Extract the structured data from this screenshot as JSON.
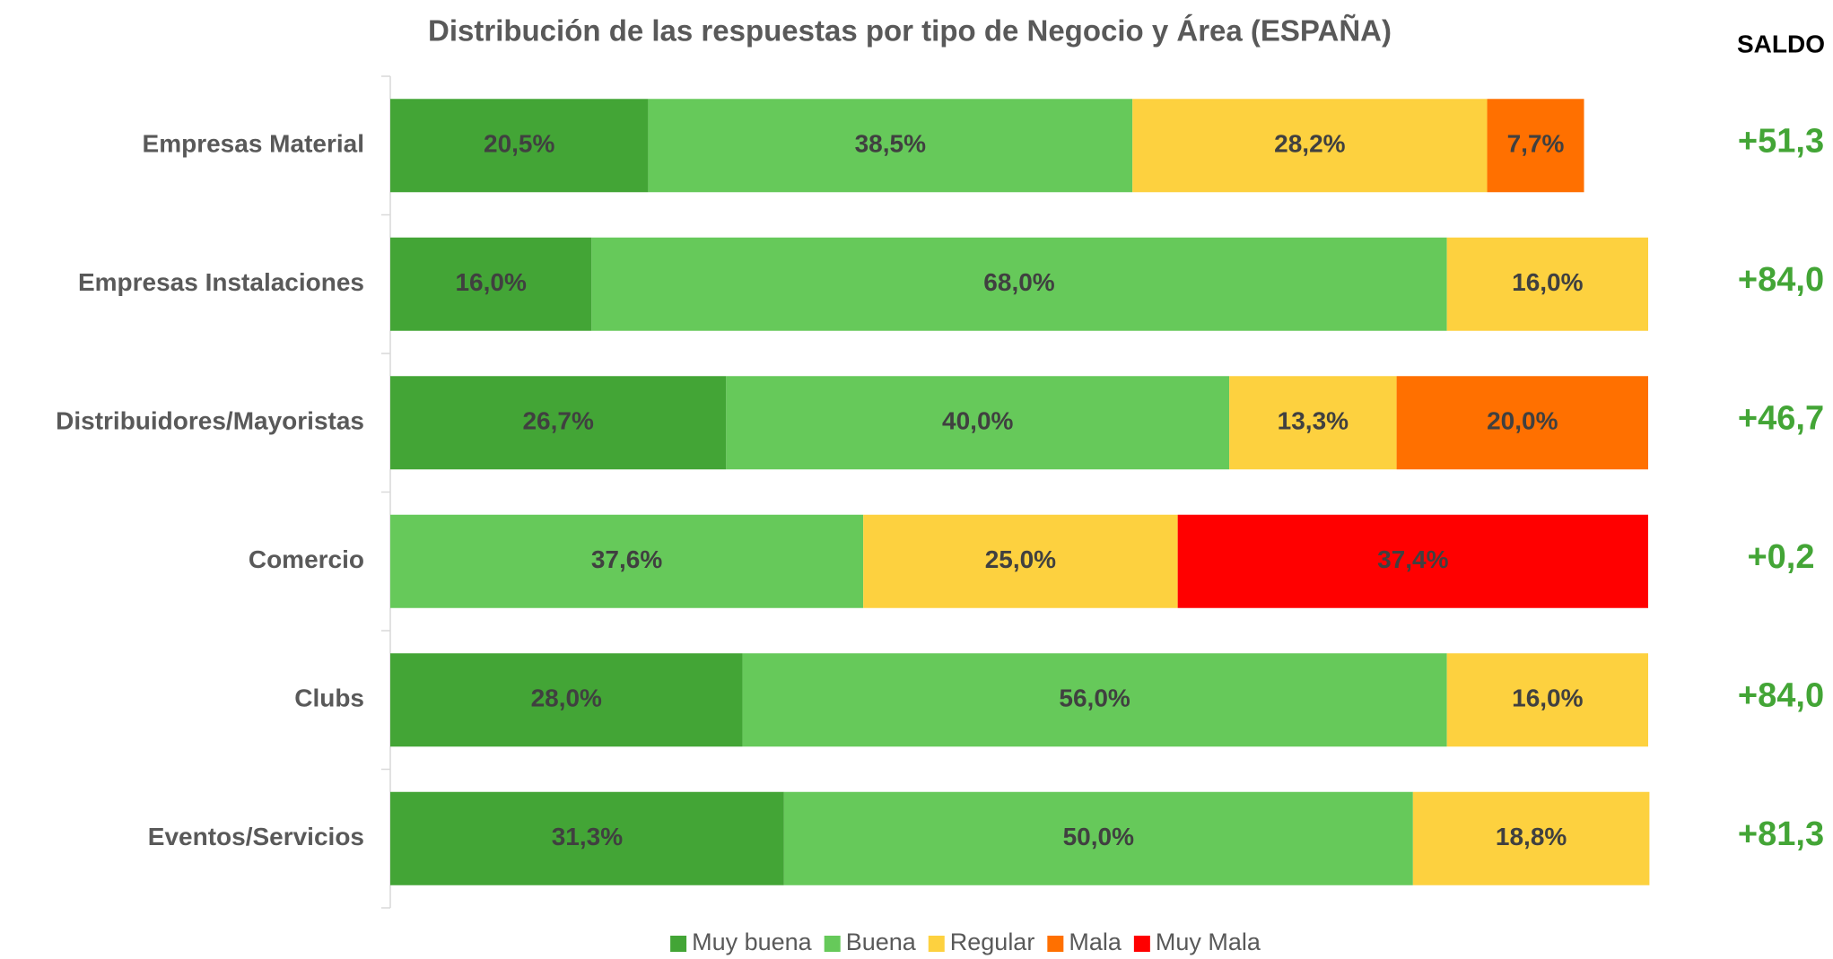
{
  "chart_data": {
    "type": "stacked_barh",
    "title": "Distribución de las respuestas por tipo de Negocio y Área (ESPAÑA)",
    "categories": [
      "Empresas Material",
      "Empresas Instalaciones",
      "Distribuidores/Mayoristas",
      "Comercio",
      "Clubs",
      "Eventos/Servicios"
    ],
    "xlim": [
      0,
      100
    ],
    "series": [
      {
        "name": "Muy buena",
        "color": "#43a536",
        "values": [
          20.5,
          16.0,
          26.7,
          null,
          28.0,
          31.3
        ],
        "value_labels": [
          "20,5%",
          "16,0%",
          "26,7%",
          null,
          "28,0%",
          "31,3%"
        ]
      },
      {
        "name": "Buena",
        "color": "#66c95a",
        "values": [
          38.5,
          68.0,
          40.0,
          37.6,
          56.0,
          50.0
        ],
        "value_labels": [
          "38,5%",
          "68,0%",
          "40,0%",
          "37,6%",
          "56,0%",
          "50,0%"
        ]
      },
      {
        "name": "Regular",
        "color": "#fdd13f",
        "values": [
          28.2,
          16.0,
          13.3,
          25.0,
          16.0,
          18.8
        ],
        "value_labels": [
          "28,2%",
          "16,0%",
          "13,3%",
          "25,0%",
          "16,0%",
          "18,8%"
        ]
      },
      {
        "name": "Mala",
        "color": "#ff7000",
        "values": [
          7.7,
          null,
          20.0,
          null,
          null,
          null
        ],
        "value_labels": [
          "7,7%",
          null,
          "20,0%",
          null,
          null,
          null
        ]
      },
      {
        "name": "Muy Mala",
        "color": "#ff0000",
        "values": [
          null,
          null,
          null,
          37.4,
          null,
          null
        ],
        "value_labels": [
          null,
          null,
          null,
          "37,4%",
          null,
          null
        ]
      }
    ],
    "saldo": {
      "label": "SALDO",
      "color": "#43a536",
      "values": [
        51.3,
        84.0,
        46.7,
        0.2,
        84.0,
        81.3
      ],
      "value_labels": [
        "+51,3",
        "+84,0",
        "+46,7",
        "+0,2",
        "+84,0",
        "+81,3"
      ]
    },
    "legend": "bottom"
  }
}
